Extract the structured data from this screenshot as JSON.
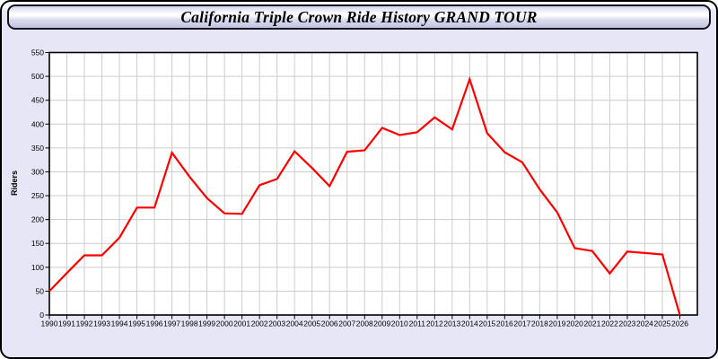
{
  "header": {
    "title": "California Triple Crown Ride History GRAND TOUR"
  },
  "chart_data": {
    "type": "line",
    "title": "California Triple Crown Ride History GRAND TOUR",
    "xlabel": "",
    "ylabel": "Riders",
    "x": [
      1990,
      1991,
      1992,
      1993,
      1994,
      1995,
      1996,
      1997,
      1998,
      1999,
      2000,
      2001,
      2002,
      2003,
      2004,
      2005,
      2006,
      2007,
      2008,
      2009,
      2010,
      2011,
      2012,
      2013,
      2014,
      2015,
      2016,
      2017,
      2018,
      2019,
      2020,
      2021,
      2022,
      2023,
      2024,
      2025,
      2026
    ],
    "values": [
      50,
      88,
      125,
      125,
      162,
      225,
      225,
      340,
      290,
      245,
      213,
      212,
      272,
      285,
      343,
      308,
      270,
      342,
      345,
      392,
      377,
      383,
      414,
      389,
      494,
      381,
      341,
      320,
      263,
      215,
      140,
      134,
      87,
      133,
      130,
      127,
      0
    ],
    "xlim": [
      1990,
      2027
    ],
    "ylim": [
      0,
      550
    ],
    "y_ticks": [
      0,
      50,
      100,
      150,
      200,
      250,
      300,
      350,
      400,
      450,
      500,
      550
    ],
    "grid": true,
    "legend": "none",
    "series_name": "Riders",
    "line_color": "#ff0000",
    "grid_color": "#cccccc",
    "axis_color": "#000000",
    "plot_bg": "#ffffff",
    "panel_bg": "#e6e6f6"
  }
}
